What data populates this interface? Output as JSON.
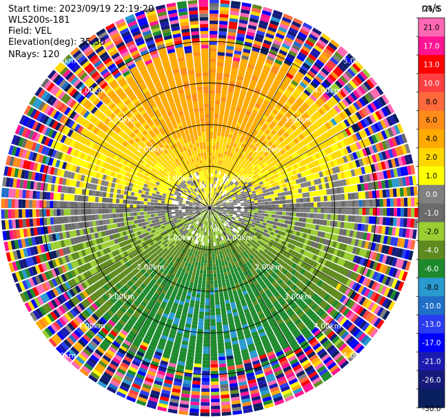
{
  "header": {
    "start_time": "Start time: 2023/09/19 22:19:20",
    "instrument": "WLS200s-181",
    "field": "Field: VEL",
    "elevation": "Elevation(deg): 35.30",
    "nrays": "NRays: 120"
  },
  "chart_data": {
    "type": "heatmap",
    "projection": "polar-ppi",
    "field": "VEL",
    "units": "m/s",
    "n_rays": 120,
    "elevation_deg": 35.3,
    "range_rings_km": [
      1.0,
      2.0,
      3.0,
      4.0
    ],
    "ring_labels": [
      "1.00km",
      "2.00km",
      "3.00km",
      "4.00km",
      "5.00km"
    ],
    "spokes_deg": [
      0,
      30,
      60,
      90,
      120,
      150,
      180,
      210,
      240,
      270,
      300,
      330
    ],
    "colorbar": {
      "label": "m/s",
      "boundaries": [
        -30.0,
        -26.0,
        -21.0,
        -17.0,
        -13.0,
        -10.0,
        -8.0,
        -6.0,
        -4.0,
        -2.0,
        -1.0,
        0.0,
        1.0,
        2.0,
        4.0,
        6.0,
        8.0,
        10.0,
        13.0,
        17.0,
        21.0,
        26.0
      ],
      "tick_labels": [
        "-30.0",
        "-26.0",
        "-21.0",
        "-17.0",
        "-13.0",
        "-10.0",
        "-8.0",
        "-6.0",
        "-4.0",
        "-2.0",
        "-1.0",
        "0.0",
        "1.0",
        "2.0",
        "4.0",
        "6.0",
        "8.0",
        "10.0",
        "13.0",
        "17.0",
        "21.0",
        "26.0"
      ],
      "colors": [
        "#0a1f5e",
        "#151a7a",
        "#1b1bb0",
        "#0000ff",
        "#2a3cf0",
        "#1f6fc8",
        "#2a9ad0",
        "#1e8a2e",
        "#5f8a1f",
        "#9acd32",
        "#6b6b6b",
        "#808080",
        "#ffff00",
        "#ffd700",
        "#ffaa00",
        "#ff8c1a",
        "#ff6a3d",
        "#ff4040",
        "#ff0000",
        "#ff1493",
        "#ff69b4"
      ]
    },
    "pattern": {
      "near_field_km": 4.0,
      "noise_beyond_km": 4.0,
      "wind_from_deg": 180,
      "description_values": "north half positive (0 to 6 m/s), south half negative (-1 to -6 m/s)"
    }
  }
}
